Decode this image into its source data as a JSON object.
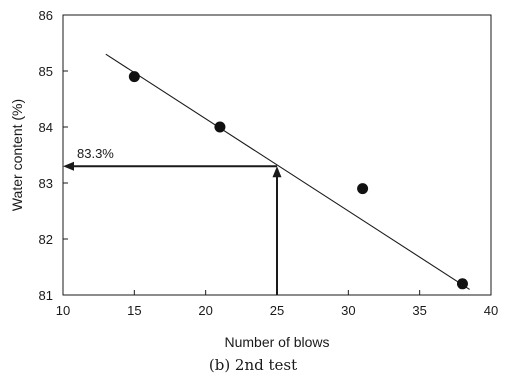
{
  "chart_data": {
    "type": "scatter",
    "title": "",
    "caption": "(b) 2nd test",
    "xlabel": "Number of blows",
    "ylabel": "Water content (%)",
    "xlim": [
      10,
      40
    ],
    "ylim": [
      81,
      86
    ],
    "x_ticks": [
      10,
      15,
      20,
      25,
      30,
      35,
      40
    ],
    "y_ticks": [
      81,
      82,
      83,
      84,
      85,
      86
    ],
    "grid": false,
    "points": [
      {
        "x": 15,
        "y": 84.9
      },
      {
        "x": 21,
        "y": 84.0
      },
      {
        "x": 31,
        "y": 82.9
      },
      {
        "x": 38,
        "y": 81.2
      }
    ],
    "fit_line": {
      "x_start": 13,
      "y_start": 85.3,
      "x_end": 38.5,
      "y_end": 81.1
    },
    "annotation": {
      "label": "83.3%",
      "x": 25,
      "y": 83.3
    }
  },
  "colors": {
    "axis": "#1a1a1a",
    "marker": "#111111",
    "line": "#1a1a1a"
  }
}
